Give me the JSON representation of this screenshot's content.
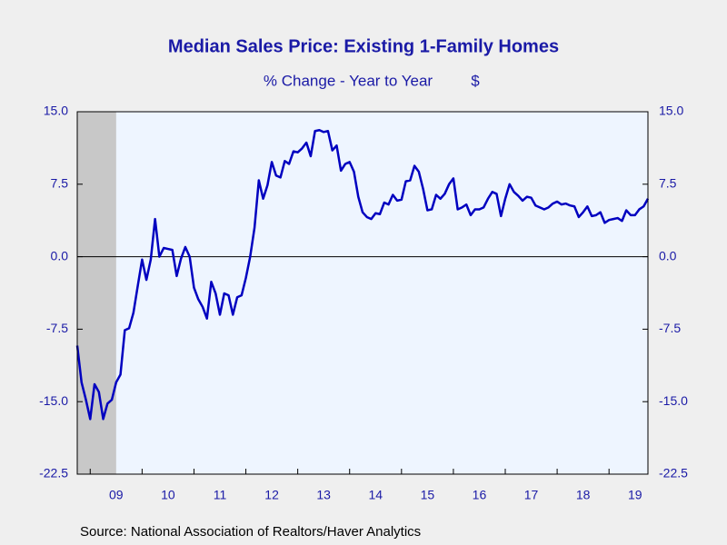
{
  "chart_data": {
    "type": "line",
    "title": "Median Sales Price: Existing 1-Family Homes",
    "subtitle": "% Change - Year to Year",
    "unit": "$",
    "source": "Source:  National Association of Realtors/Haver Analytics",
    "color": "#0000c0",
    "recession": [
      2008.75,
      2009.5
    ],
    "x": [
      2008.75,
      2008.833,
      2008.917,
      2009,
      2009.083,
      2009.167,
      2009.25,
      2009.333,
      2009.417,
      2009.5,
      2009.583,
      2009.667,
      2009.75,
      2009.833,
      2009.917,
      2010,
      2010.083,
      2010.167,
      2010.25,
      2010.333,
      2010.417,
      2010.5,
      2010.583,
      2010.667,
      2010.75,
      2010.833,
      2010.917,
      2011,
      2011.083,
      2011.167,
      2011.25,
      2011.333,
      2011.417,
      2011.5,
      2011.583,
      2011.667,
      2011.75,
      2011.833,
      2011.917,
      2012,
      2012.083,
      2012.167,
      2012.25,
      2012.333,
      2012.417,
      2012.5,
      2012.583,
      2012.667,
      2012.75,
      2012.833,
      2012.917,
      2013,
      2013.083,
      2013.167,
      2013.25,
      2013.333,
      2013.417,
      2013.5,
      2013.583,
      2013.667,
      2013.75,
      2013.833,
      2013.917,
      2014,
      2014.083,
      2014.167,
      2014.25,
      2014.333,
      2014.417,
      2014.5,
      2014.583,
      2014.667,
      2014.75,
      2014.833,
      2014.917,
      2015,
      2015.083,
      2015.167,
      2015.25,
      2015.333,
      2015.417,
      2015.5,
      2015.583,
      2015.667,
      2015.75,
      2015.833,
      2015.917,
      2016,
      2016.083,
      2016.167,
      2016.25,
      2016.333,
      2016.417,
      2016.5,
      2016.583,
      2016.667,
      2016.75,
      2016.833,
      2016.917,
      2017,
      2017.083,
      2017.167,
      2017.25,
      2017.333,
      2017.417,
      2017.5,
      2017.583,
      2017.667,
      2017.75,
      2017.833,
      2017.917,
      2018,
      2018.083,
      2018.167,
      2018.25,
      2018.333,
      2018.417,
      2018.5,
      2018.583,
      2018.667,
      2018.75,
      2018.833,
      2018.917,
      2019,
      2019.083,
      2019.167,
      2019.25,
      2019.333,
      2019.417,
      2019.5,
      2019.583,
      2019.667,
      2019.75
    ],
    "values": [
      -9.2,
      -13.0,
      -14.8,
      -16.8,
      -13.2,
      -14.0,
      -16.8,
      -15.2,
      -14.8,
      -13.0,
      -12.2,
      -7.6,
      -7.4,
      -5.8,
      -3.0,
      -0.3,
      -2.4,
      -0.3,
      3.9,
      0.0,
      0.9,
      0.8,
      0.7,
      -2.0,
      -0.2,
      1.0,
      0.0,
      -3.2,
      -4.4,
      -5.2,
      -6.4,
      -2.6,
      -3.8,
      -6.0,
      -3.8,
      -4.0,
      -6.0,
      -4.2,
      -4.0,
      -2.2,
      0.0,
      3.0,
      7.9,
      6.0,
      7.4,
      9.8,
      8.4,
      8.2,
      9.9,
      9.6,
      10.9,
      10.8,
      11.2,
      11.8,
      10.4,
      13.0,
      13.1,
      12.9,
      13.0,
      11.0,
      11.5,
      8.9,
      9.6,
      9.8,
      8.8,
      6.2,
      4.6,
      4.1,
      3.9,
      4.5,
      4.4,
      5.6,
      5.4,
      6.4,
      5.8,
      5.9,
      7.8,
      7.9,
      9.4,
      8.8,
      7.0,
      4.8,
      4.9,
      6.4,
      6.0,
      6.5,
      7.5,
      8.1,
      4.9,
      5.1,
      5.4,
      4.3,
      4.9,
      4.9,
      5.1,
      6.0,
      6.7,
      6.5,
      4.2,
      6.0,
      7.5,
      6.7,
      6.3,
      5.8,
      6.2,
      6.1,
      5.3,
      5.1,
      4.9,
      5.1,
      5.5,
      5.7,
      5.4,
      5.5,
      5.3,
      5.2,
      4.1,
      4.6,
      5.2,
      4.2,
      4.3,
      4.6,
      3.5,
      3.8,
      3.9,
      4.0,
      3.7,
      4.8,
      4.3,
      4.3,
      4.9,
      5.2,
      6.0
    ],
    "xlim": [
      2008.75,
      2019.75
    ],
    "xticks": [
      {
        "value": 2009,
        "label": "09"
      },
      {
        "value": 2010,
        "label": "10"
      },
      {
        "value": 2011,
        "label": "11"
      },
      {
        "value": 2012,
        "label": "12"
      },
      {
        "value": 2013,
        "label": "13"
      },
      {
        "value": 2014,
        "label": "14"
      },
      {
        "value": 2015,
        "label": "15"
      },
      {
        "value": 2016,
        "label": "16"
      },
      {
        "value": 2017,
        "label": "17"
      },
      {
        "value": 2018,
        "label": "18"
      },
      {
        "value": 2019,
        "label": "19"
      }
    ],
    "ylim": [
      -22.5,
      15
    ],
    "yticks": [
      {
        "value": -22.5,
        "label": "-22.5"
      },
      {
        "value": -15,
        "label": "-15.0"
      },
      -7.5,
      {
        "value": 0,
        "label": "0.0"
      },
      7.5,
      {
        "value": 15,
        "label": "15.0"
      }
    ],
    "y2lim": [
      -22.5,
      15
    ],
    "y2ticks": [
      {
        "value": -22.5,
        "label": "-22.5"
      },
      {
        "value": -15,
        "label": "-15.0"
      },
      -7.5,
      {
        "value": 0,
        "label": "0.0"
      },
      7.5,
      {
        "value": 15,
        "label": "15.0"
      }
    ]
  }
}
